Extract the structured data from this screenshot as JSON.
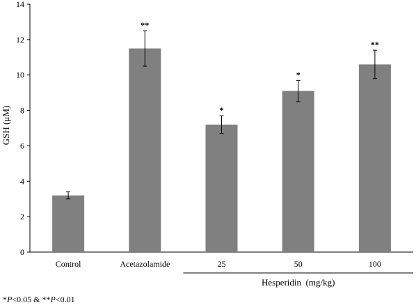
{
  "chart_data": {
    "type": "bar",
    "categories": [
      "Control",
      "Acetazolamide",
      "25",
      "50",
      "100"
    ],
    "values": [
      3.2,
      11.5,
      7.2,
      9.1,
      10.6
    ],
    "errors": [
      0.2,
      1.0,
      0.5,
      0.6,
      0.8
    ],
    "significance": [
      "",
      "**",
      "*",
      "*",
      "**"
    ],
    "ylabel": "GSH (μM)",
    "ylim": [
      0,
      14
    ],
    "yticks": [
      0,
      2,
      4,
      6,
      8,
      10,
      12,
      14
    ],
    "group_label": "Hesperidin  (mg/kg)",
    "bar_color": "#808080",
    "grid": false
  },
  "footnote": {
    "star1": "*",
    "p1": "P",
    "t1": "<0.05 & **",
    "p2": "P",
    "t2": "<0.01"
  }
}
